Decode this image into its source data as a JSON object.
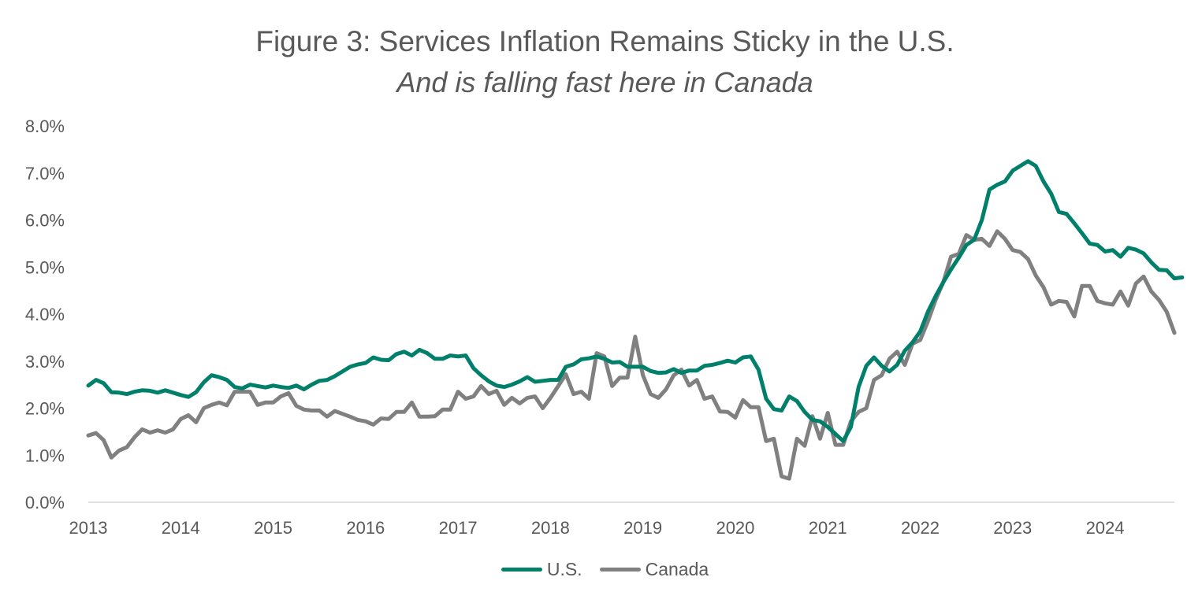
{
  "chart_data": {
    "type": "line",
    "title": "Figure 3: Services Inflation Remains Sticky in the U.S.",
    "subtitle": "And is falling fast here in Canada",
    "xlabel": "",
    "ylabel": "",
    "x_start": 2013.0,
    "x_step_months": 1,
    "xlim": [
      2013.0,
      2024.75
    ],
    "ylim": [
      0,
      8
    ],
    "x_ticks": [
      "2013",
      "2014",
      "2015",
      "2016",
      "2017",
      "2018",
      "2019",
      "2020",
      "2021",
      "2022",
      "2023",
      "2024"
    ],
    "x_tick_values": [
      2013,
      2014,
      2015,
      2016,
      2017,
      2018,
      2019,
      2020,
      2021,
      2022,
      2023,
      2024
    ],
    "y_ticks": [
      "0.0%",
      "1.0%",
      "2.0%",
      "3.0%",
      "4.0%",
      "5.0%",
      "6.0%",
      "7.0%",
      "8.0%"
    ],
    "y_tick_values": [
      0,
      1,
      2,
      3,
      4,
      5,
      6,
      7,
      8
    ],
    "grid": false,
    "legend_position": "bottom-center",
    "series": [
      {
        "name": "U.S.",
        "color": "#00806a",
        "values": [
          2.48,
          2.6,
          2.53,
          2.34,
          2.33,
          2.3,
          2.35,
          2.38,
          2.37,
          2.33,
          2.38,
          2.33,
          2.28,
          2.24,
          2.34,
          2.55,
          2.7,
          2.66,
          2.6,
          2.45,
          2.42,
          2.5,
          2.47,
          2.44,
          2.48,
          2.45,
          2.43,
          2.48,
          2.4,
          2.5,
          2.58,
          2.6,
          2.68,
          2.78,
          2.88,
          2.93,
          2.96,
          3.08,
          3.03,
          3.02,
          3.15,
          3.2,
          3.12,
          3.24,
          3.17,
          3.05,
          3.05,
          3.12,
          3.1,
          3.12,
          2.85,
          2.7,
          2.57,
          2.48,
          2.45,
          2.5,
          2.57,
          2.66,
          2.56,
          2.58,
          2.6,
          2.6,
          2.88,
          2.93,
          3.04,
          3.06,
          3.1,
          3.05,
          2.97,
          2.98,
          2.88,
          2.88,
          2.88,
          2.79,
          2.75,
          2.76,
          2.83,
          2.75,
          2.8,
          2.8,
          2.9,
          2.92,
          2.96,
          3.01,
          2.97,
          3.08,
          3.1,
          2.82,
          2.2,
          1.98,
          1.95,
          2.25,
          2.15,
          1.92,
          1.75,
          1.72,
          1.6,
          1.45,
          1.3,
          1.6,
          2.45,
          2.9,
          3.08,
          2.9,
          2.78,
          2.92,
          3.22,
          3.4,
          3.63,
          4.05,
          4.38,
          4.68,
          4.95,
          5.2,
          5.47,
          5.58,
          6.0,
          6.65,
          6.75,
          6.82,
          7.05,
          7.15,
          7.25,
          7.15,
          6.82,
          6.56,
          6.17,
          6.13,
          5.93,
          5.72,
          5.5,
          5.47,
          5.33,
          5.36,
          5.22,
          5.41,
          5.37,
          5.29,
          5.1,
          4.94,
          4.93,
          4.76,
          4.78
        ]
      },
      {
        "name": "Canada",
        "color": "#808080",
        "values": [
          1.42,
          1.47,
          1.32,
          0.95,
          1.1,
          1.17,
          1.38,
          1.55,
          1.48,
          1.53,
          1.48,
          1.55,
          1.77,
          1.85,
          1.7,
          2.0,
          2.07,
          2.12,
          2.06,
          2.35,
          2.35,
          2.35,
          2.07,
          2.12,
          2.12,
          2.25,
          2.32,
          2.05,
          1.97,
          1.95,
          1.95,
          1.82,
          1.94,
          1.88,
          1.82,
          1.75,
          1.72,
          1.65,
          1.78,
          1.77,
          1.92,
          1.92,
          2.12,
          1.82,
          1.82,
          1.83,
          1.97,
          1.97,
          2.35,
          2.2,
          2.25,
          2.47,
          2.3,
          2.37,
          2.07,
          2.22,
          2.1,
          2.22,
          2.25,
          2.0,
          2.22,
          2.47,
          2.72,
          2.3,
          2.35,
          2.2,
          3.17,
          3.1,
          2.47,
          2.65,
          2.65,
          3.52,
          2.7,
          2.3,
          2.22,
          2.4,
          2.7,
          2.82,
          2.48,
          2.6,
          2.2,
          2.25,
          1.93,
          1.92,
          1.8,
          2.17,
          2.02,
          2.02,
          1.3,
          1.35,
          0.55,
          0.5,
          1.35,
          1.2,
          1.83,
          1.35,
          1.9,
          1.22,
          1.22,
          1.72,
          1.92,
          2.0,
          2.6,
          2.7,
          3.05,
          3.2,
          2.92,
          3.37,
          3.45,
          3.85,
          4.3,
          4.68,
          5.22,
          5.28,
          5.68,
          5.58,
          5.6,
          5.45,
          5.76,
          5.6,
          5.36,
          5.32,
          5.17,
          4.82,
          4.57,
          4.2,
          4.28,
          4.26,
          3.95,
          4.6,
          4.6,
          4.28,
          4.23,
          4.2,
          4.48,
          4.18,
          4.65,
          4.8,
          4.48,
          4.3,
          4.05,
          3.6
        ]
      }
    ]
  }
}
